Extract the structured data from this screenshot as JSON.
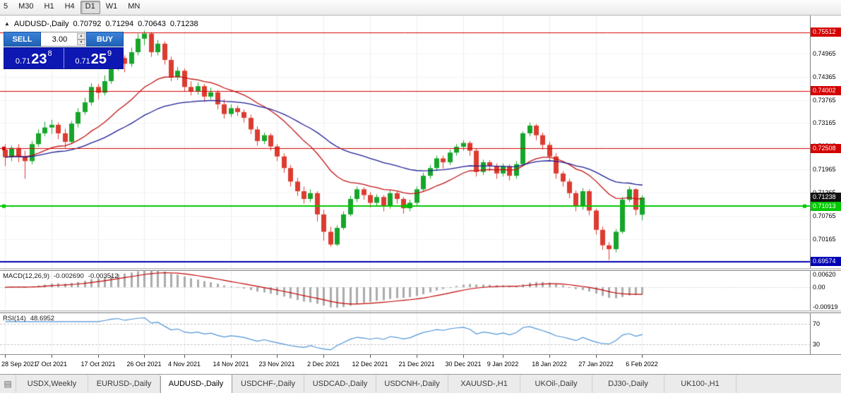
{
  "colors": {
    "up": "#16a52a",
    "down": "#dc3c30",
    "grid": "#ededed",
    "macd_hist": "#ababab",
    "macd_signal": "#c00000",
    "rsi_line": "#4f93d6",
    "accent_blue": "#1f62b6",
    "price_box_blue": "#0d17b2"
  },
  "toolbar": {
    "timeframes": [
      {
        "label": "5",
        "active": false
      },
      {
        "label": "M30",
        "active": false
      },
      {
        "label": "H1",
        "active": false
      },
      {
        "label": "H4",
        "active": false
      },
      {
        "label": "D1",
        "active": true
      },
      {
        "label": "W1",
        "active": false
      },
      {
        "label": "MN",
        "active": false
      }
    ]
  },
  "header": {
    "title": "AUDUSD-,Daily",
    "open": "0.70792",
    "high": "0.71294",
    "low": "0.70643",
    "close": "0.71238"
  },
  "trade": {
    "sell_label": "SELL",
    "buy_label": "BUY",
    "volume": "3.00",
    "bid": {
      "prefix": "0.71",
      "big": "23",
      "sup": "8"
    },
    "ask": {
      "prefix": "0.71",
      "big": "25",
      "sup": "9"
    }
  },
  "macd_panel": {
    "title": "MACD(12,26,9)",
    "value_main": "-0.002690",
    "value_signal": "-0.003512",
    "axis": [
      {
        "v": 0.0062,
        "t": "0.00620"
      },
      {
        "v": 0,
        "t": "0.00"
      },
      {
        "v": -0.00919,
        "t": "-0.00919"
      }
    ]
  },
  "rsi_panel": {
    "title": "RSI(14)",
    "value": "48.6952",
    "levels": [
      {
        "v": 70,
        "t": "70"
      },
      {
        "v": 30,
        "t": "30"
      }
    ]
  },
  "bottom_tabs": {
    "active_index": 2,
    "items": [
      {
        "label": "USDX,Weekly"
      },
      {
        "label": "EURUSD-,Daily"
      },
      {
        "label": "AUDUSD-,Daily"
      },
      {
        "label": "USDCHF-,Daily"
      },
      {
        "label": "USDCAD-,Daily"
      },
      {
        "label": "USDCNH-,Daily"
      },
      {
        "label": "XAUUSD-,H1"
      },
      {
        "label": "UKOil-,Daily"
      },
      {
        "label": "DJ30-,Daily"
      },
      {
        "label": "UK100-,H1"
      }
    ]
  },
  "chart_data": {
    "type": "candlestick",
    "symbol": "AUDUSD-",
    "timeframe": "Daily",
    "y_axis": {
      "ticks": [
        {
          "v": 0.74965,
          "t": "0.74965"
        },
        {
          "v": 0.74365,
          "t": "0.74365"
        },
        {
          "v": 0.73765,
          "t": "0.73765"
        },
        {
          "v": 0.73165,
          "t": "0.73165"
        },
        {
          "v": 0.72565,
          "t": "0.72565"
        },
        {
          "v": 0.71965,
          "t": "0.71965"
        },
        {
          "v": 0.71365,
          "t": "0.71365"
        },
        {
          "v": 0.70765,
          "t": "0.70765"
        },
        {
          "v": 0.70165,
          "t": "0.70165"
        },
        {
          "v": 0.69565,
          "t": "0.69565"
        }
      ],
      "badges": [
        {
          "v": 0.75512,
          "t": "0.75512",
          "bg": "#d40000"
        },
        {
          "v": 0.74002,
          "t": "0.74002",
          "bg": "#d40000"
        },
        {
          "v": 0.72508,
          "t": "0.72508",
          "bg": "#d40000"
        },
        {
          "v": 0.71238,
          "t": "0.71238",
          "bg": "#111111"
        },
        {
          "v": 0.71013,
          "t": "0.71013",
          "bg": "#00c800"
        },
        {
          "v": 0.69574,
          "t": "0.69574",
          "bg": "#0000b4"
        }
      ]
    },
    "levels": [
      {
        "v": 0.75512,
        "color": "#d40000",
        "w": 1,
        "handles": []
      },
      {
        "v": 0.74002,
        "color": "#d40000",
        "w": 1,
        "handles": []
      },
      {
        "v": 0.72508,
        "color": "#d40000",
        "w": 1,
        "handles": [
          "left"
        ]
      },
      {
        "v": 0.71013,
        "color": "#00c800",
        "w": 2,
        "handles": [
          "left",
          "center",
          "right"
        ]
      },
      {
        "v": 0.69574,
        "color": "#0000b4",
        "w": 2,
        "handles": []
      }
    ],
    "moving_averages": [
      {
        "period": 18,
        "color": "#c41111"
      },
      {
        "period": 40,
        "color": "#1c1c96"
      }
    ],
    "x_labels": [
      {
        "idx": 0,
        "text": "28 Sep 2021"
      },
      {
        "idx": 7,
        "text": "7 Oct 2021"
      },
      {
        "idx": 14,
        "text": "17 Oct 2021"
      },
      {
        "idx": 21,
        "text": "26 Oct 2021"
      },
      {
        "idx": 27,
        "text": "4 Nov 2021"
      },
      {
        "idx": 34,
        "text": "14 Nov 2021"
      },
      {
        "idx": 41,
        "text": "23 Nov 2021"
      },
      {
        "idx": 48,
        "text": "2 Dec 2021"
      },
      {
        "idx": 55,
        "text": "12 Dec 2021"
      },
      {
        "idx": 62,
        "text": "21 Dec 2021"
      },
      {
        "idx": 69,
        "text": "30 Dec 2021"
      },
      {
        "idx": 75,
        "text": "9 Jan 2022"
      },
      {
        "idx": 82,
        "text": "18 Jan 2022"
      },
      {
        "idx": 89,
        "text": "27 Jan 2022"
      },
      {
        "idx": 96,
        "text": "6 Feb 2022"
      }
    ],
    "candles": [
      [
        0.7248,
        0.7262,
        0.7205,
        0.7228
      ],
      [
        0.7228,
        0.7258,
        0.7218,
        0.7252
      ],
      [
        0.7252,
        0.7262,
        0.7215,
        0.723
      ],
      [
        0.723,
        0.7245,
        0.7172,
        0.7218
      ],
      [
        0.7218,
        0.727,
        0.721,
        0.7262
      ],
      [
        0.7262,
        0.73,
        0.7255,
        0.729
      ],
      [
        0.729,
        0.732,
        0.7282,
        0.7305
      ],
      [
        0.7305,
        0.7325,
        0.7288,
        0.7312
      ],
      [
        0.7312,
        0.7318,
        0.7275,
        0.729
      ],
      [
        0.729,
        0.7302,
        0.7252,
        0.7268
      ],
      [
        0.7268,
        0.7322,
        0.7262,
        0.7315
      ],
      [
        0.7315,
        0.7355,
        0.7305,
        0.7345
      ],
      [
        0.7345,
        0.7382,
        0.7338,
        0.737
      ],
      [
        0.737,
        0.742,
        0.7362,
        0.741
      ],
      [
        0.741,
        0.7418,
        0.7378,
        0.7395
      ],
      [
        0.7395,
        0.744,
        0.7388,
        0.7425
      ],
      [
        0.7425,
        0.7475,
        0.7418,
        0.7465
      ],
      [
        0.7465,
        0.7495,
        0.7452,
        0.7485
      ],
      [
        0.7485,
        0.7492,
        0.7448,
        0.747
      ],
      [
        0.747,
        0.7512,
        0.7462,
        0.75
      ],
      [
        0.75,
        0.7548,
        0.7492,
        0.7535
      ],
      [
        0.7535,
        0.7556,
        0.7518,
        0.7548
      ],
      [
        0.7548,
        0.7552,
        0.7488,
        0.75
      ],
      [
        0.75,
        0.7532,
        0.7492,
        0.7522
      ],
      [
        0.7522,
        0.7528,
        0.7468,
        0.748
      ],
      [
        0.748,
        0.7488,
        0.7425,
        0.7435
      ],
      [
        0.7435,
        0.7462,
        0.7428,
        0.7452
      ],
      [
        0.7452,
        0.7458,
        0.7398,
        0.741
      ],
      [
        0.741,
        0.7425,
        0.7388,
        0.7398
      ],
      [
        0.7398,
        0.7422,
        0.739,
        0.7412
      ],
      [
        0.7412,
        0.7418,
        0.7372,
        0.7385
      ],
      [
        0.7385,
        0.7408,
        0.7378,
        0.7396
      ],
      [
        0.7396,
        0.7402,
        0.7352,
        0.7365
      ],
      [
        0.7365,
        0.7378,
        0.7328,
        0.734
      ],
      [
        0.734,
        0.7365,
        0.7332,
        0.7355
      ],
      [
        0.7355,
        0.7362,
        0.7335,
        0.7345
      ],
      [
        0.7345,
        0.7352,
        0.7318,
        0.733
      ],
      [
        0.733,
        0.7338,
        0.7288,
        0.73
      ],
      [
        0.73,
        0.7308,
        0.7258,
        0.727
      ],
      [
        0.727,
        0.7292,
        0.7262,
        0.7285
      ],
      [
        0.7285,
        0.729,
        0.7245,
        0.7256
      ],
      [
        0.7256,
        0.7262,
        0.7218,
        0.723
      ],
      [
        0.723,
        0.7238,
        0.7188,
        0.72
      ],
      [
        0.72,
        0.7208,
        0.7152,
        0.7165
      ],
      [
        0.7165,
        0.7175,
        0.7128,
        0.714
      ],
      [
        0.714,
        0.7152,
        0.7108,
        0.712
      ],
      [
        0.712,
        0.7145,
        0.7112,
        0.7135
      ],
      [
        0.7135,
        0.714,
        0.7062,
        0.708
      ],
      [
        0.708,
        0.7092,
        0.7012,
        0.7035
      ],
      [
        0.7035,
        0.7048,
        0.6996,
        0.7002
      ],
      [
        0.7002,
        0.7052,
        0.6998,
        0.7045
      ],
      [
        0.7045,
        0.7088,
        0.704,
        0.708
      ],
      [
        0.708,
        0.7128,
        0.7075,
        0.712
      ],
      [
        0.712,
        0.7152,
        0.7112,
        0.7145
      ],
      [
        0.7145,
        0.715,
        0.7118,
        0.713
      ],
      [
        0.713,
        0.7138,
        0.7098,
        0.711
      ],
      [
        0.711,
        0.7132,
        0.7102,
        0.7125
      ],
      [
        0.7125,
        0.713,
        0.7088,
        0.71
      ],
      [
        0.71,
        0.7142,
        0.7095,
        0.7135
      ],
      [
        0.7135,
        0.714,
        0.7108,
        0.712
      ],
      [
        0.712,
        0.7125,
        0.7082,
        0.7096
      ],
      [
        0.7096,
        0.7118,
        0.7088,
        0.711
      ],
      [
        0.711,
        0.7152,
        0.7102,
        0.7145
      ],
      [
        0.7145,
        0.7188,
        0.7138,
        0.718
      ],
      [
        0.718,
        0.7208,
        0.7172,
        0.72
      ],
      [
        0.72,
        0.7232,
        0.7192,
        0.7225
      ],
      [
        0.7225,
        0.7232,
        0.7198,
        0.7215
      ],
      [
        0.7215,
        0.7248,
        0.7208,
        0.724
      ],
      [
        0.724,
        0.7262,
        0.7232,
        0.7255
      ],
      [
        0.7255,
        0.7272,
        0.7245,
        0.7265
      ],
      [
        0.7265,
        0.727,
        0.7232,
        0.7245
      ],
      [
        0.7245,
        0.725,
        0.7178,
        0.719
      ],
      [
        0.719,
        0.7222,
        0.7182,
        0.7215
      ],
      [
        0.7215,
        0.722,
        0.7192,
        0.7205
      ],
      [
        0.7205,
        0.7212,
        0.7172,
        0.7186
      ],
      [
        0.7186,
        0.7212,
        0.7178,
        0.7205
      ],
      [
        0.7205,
        0.721,
        0.7168,
        0.718
      ],
      [
        0.718,
        0.7218,
        0.7172,
        0.721
      ],
      [
        0.721,
        0.7295,
        0.7205,
        0.729
      ],
      [
        0.729,
        0.7318,
        0.7282,
        0.731
      ],
      [
        0.731,
        0.7314,
        0.7272,
        0.7285
      ],
      [
        0.7285,
        0.7292,
        0.7248,
        0.726
      ],
      [
        0.726,
        0.7268,
        0.7218,
        0.723
      ],
      [
        0.723,
        0.7238,
        0.7172,
        0.7186
      ],
      [
        0.7186,
        0.7192,
        0.7152,
        0.7165
      ],
      [
        0.7165,
        0.7172,
        0.7122,
        0.7135
      ],
      [
        0.7135,
        0.7142,
        0.7088,
        0.71
      ],
      [
        0.71,
        0.7148,
        0.7092,
        0.714
      ],
      [
        0.714,
        0.7145,
        0.7078,
        0.709
      ],
      [
        0.709,
        0.7095,
        0.7028,
        0.704
      ],
      [
        0.704,
        0.7048,
        0.6988,
        0.7
      ],
      [
        0.7,
        0.7008,
        0.6962,
        0.699
      ],
      [
        0.699,
        0.7042,
        0.6982,
        0.7035
      ],
      [
        0.7035,
        0.7125,
        0.703,
        0.7118
      ],
      [
        0.7118,
        0.7152,
        0.7112,
        0.7145
      ],
      [
        0.7145,
        0.7148,
        0.7078,
        0.7092
      ],
      [
        0.70792,
        0.71294,
        0.70643,
        0.71238
      ]
    ]
  }
}
